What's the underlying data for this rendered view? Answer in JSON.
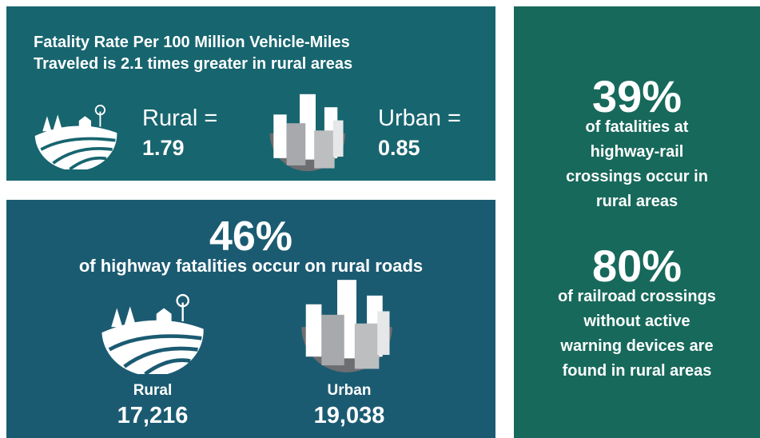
{
  "rate_panel": {
    "title_lines": [
      "Fatality Rate Per 100 Million Vehicle-Miles",
      "Traveled is 2.1 times greater in rural areas"
    ],
    "rural_label": "Rural =",
    "rural_value": "1.79",
    "urban_label": "Urban =",
    "urban_value": "0.85"
  },
  "fatalities_panel": {
    "headline": "46%",
    "subtitle": "of highway fatalities occur on rural roads",
    "rural_label": "Rural",
    "rural_value": "17,216",
    "urban_label": "Urban",
    "urban_value": "19,038"
  },
  "crossings_panel": {
    "stat1": "39%",
    "stat1_lines": [
      "of fatalities at",
      "highway-rail",
      "crossings occur in",
      "rural areas"
    ],
    "stat2": "80%",
    "stat2_lines": [
      "of railroad crossings",
      "without active",
      "warning devices are",
      "found in rural areas"
    ]
  }
}
